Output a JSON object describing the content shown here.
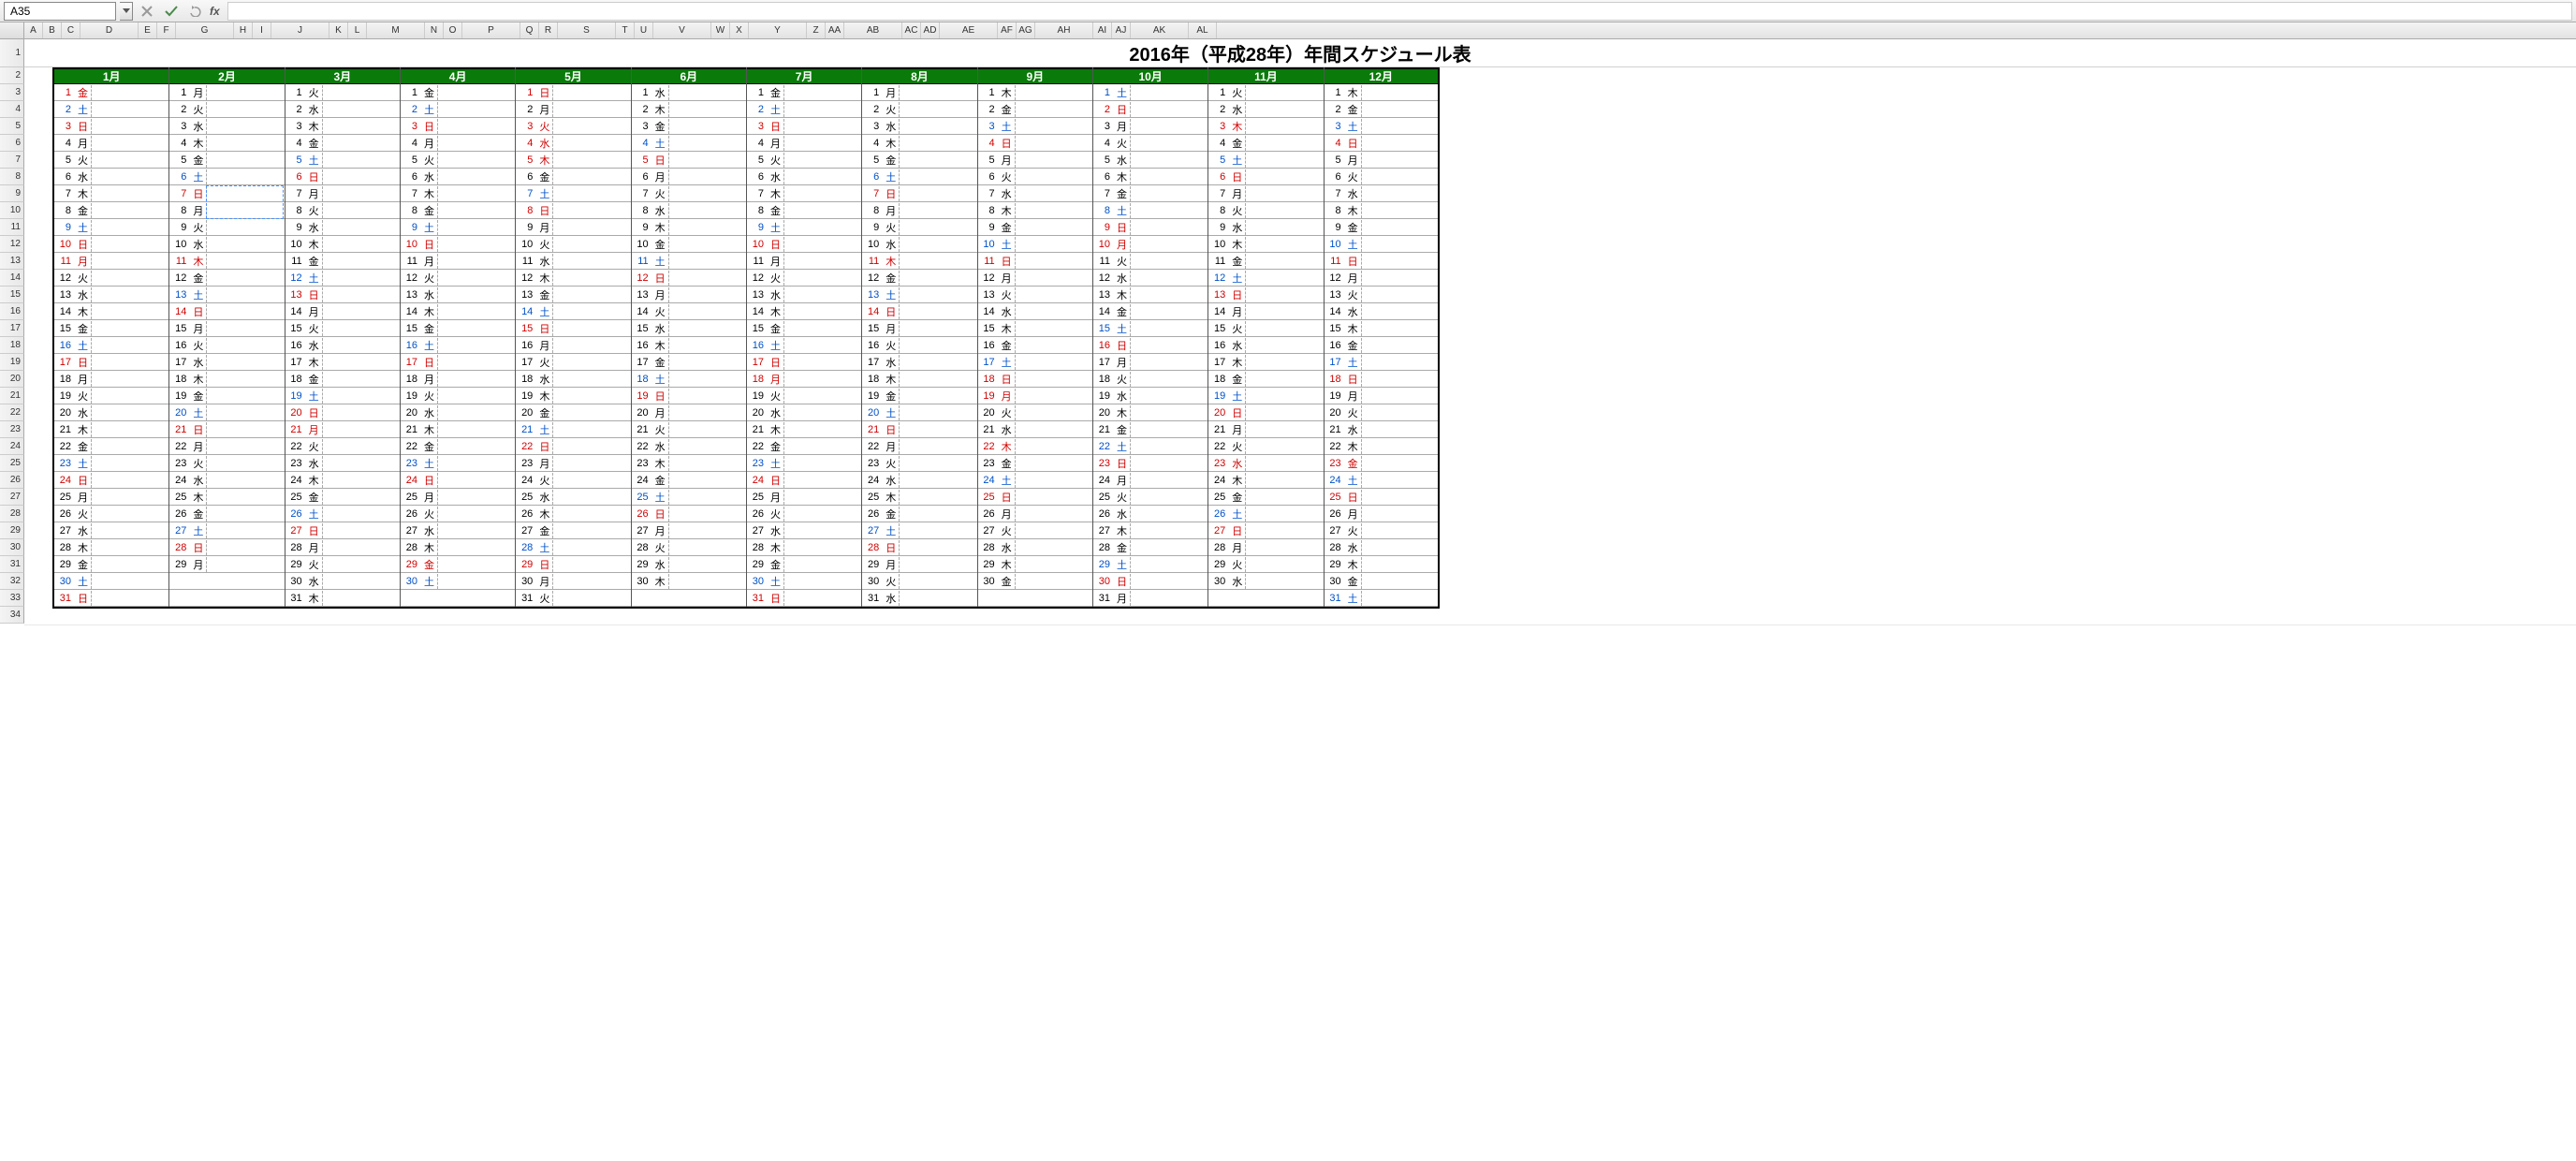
{
  "formula_bar": {
    "cell_ref": "A35",
    "fx_label": "fx"
  },
  "columns": [
    {
      "l": "A",
      "w": 20
    },
    {
      "l": "B",
      "w": 20
    },
    {
      "l": "C",
      "w": 20
    },
    {
      "l": "D",
      "w": 62
    },
    {
      "l": "E",
      "w": 20
    },
    {
      "l": "F",
      "w": 20
    },
    {
      "l": "G",
      "w": 62
    },
    {
      "l": "H",
      "w": 20
    },
    {
      "l": "I",
      "w": 20
    },
    {
      "l": "J",
      "w": 62
    },
    {
      "l": "K",
      "w": 20
    },
    {
      "l": "L",
      "w": 20
    },
    {
      "l": "M",
      "w": 62
    },
    {
      "l": "N",
      "w": 20
    },
    {
      "l": "O",
      "w": 20
    },
    {
      "l": "P",
      "w": 62
    },
    {
      "l": "Q",
      "w": 20
    },
    {
      "l": "R",
      "w": 20
    },
    {
      "l": "S",
      "w": 62
    },
    {
      "l": "T",
      "w": 20
    },
    {
      "l": "U",
      "w": 20
    },
    {
      "l": "V",
      "w": 62
    },
    {
      "l": "W",
      "w": 20
    },
    {
      "l": "X",
      "w": 20
    },
    {
      "l": "Y",
      "w": 62
    },
    {
      "l": "Z",
      "w": 20
    },
    {
      "l": "AA",
      "w": 20
    },
    {
      "l": "AB",
      "w": 62
    },
    {
      "l": "AC",
      "w": 20
    },
    {
      "l": "AD",
      "w": 20
    },
    {
      "l": "AE",
      "w": 62
    },
    {
      "l": "AF",
      "w": 20
    },
    {
      "l": "AG",
      "w": 20
    },
    {
      "l": "AH",
      "w": 62
    },
    {
      "l": "AI",
      "w": 20
    },
    {
      "l": "AJ",
      "w": 20
    },
    {
      "l": "AK",
      "w": 62
    },
    {
      "l": "AL",
      "w": 30
    }
  ],
  "row_count": 34,
  "title": "2016年（平成28年）年間スケジュール表",
  "months": [
    "1月",
    "2月",
    "3月",
    "4月",
    "5月",
    "6月",
    "7月",
    "8月",
    "9月",
    "10月",
    "11月",
    "12月"
  ],
  "weekdays": [
    "日",
    "月",
    "火",
    "水",
    "木",
    "金",
    "土"
  ],
  "calendar": {
    "start_weekday": [
      5,
      1,
      2,
      5,
      0,
      3,
      5,
      1,
      4,
      6,
      2,
      4
    ],
    "days_in_month": [
      31,
      29,
      31,
      30,
      31,
      30,
      31,
      31,
      30,
      31,
      30,
      31
    ],
    "holidays": {
      "1": [
        1,
        11
      ],
      "2": [
        11
      ],
      "3": [
        20,
        21
      ],
      "4": [
        29
      ],
      "5": [
        3,
        4,
        5
      ],
      "7": [
        18
      ],
      "8": [
        11
      ],
      "9": [
        19,
        22
      ],
      "10": [
        10
      ],
      "11": [
        3,
        23
      ],
      "12": [
        23
      ]
    }
  },
  "colors": {
    "header_bg": "#0a7a0a",
    "header_fg": "#ffffff",
    "sunday": "#d00000",
    "saturday": "#0050c8",
    "weekday": "#000000",
    "grid_border": "#aaaaaa",
    "outer_border": "#000000"
  },
  "dashed_selection": {
    "month_index": 1,
    "day_from": 7,
    "day_to": 8
  }
}
